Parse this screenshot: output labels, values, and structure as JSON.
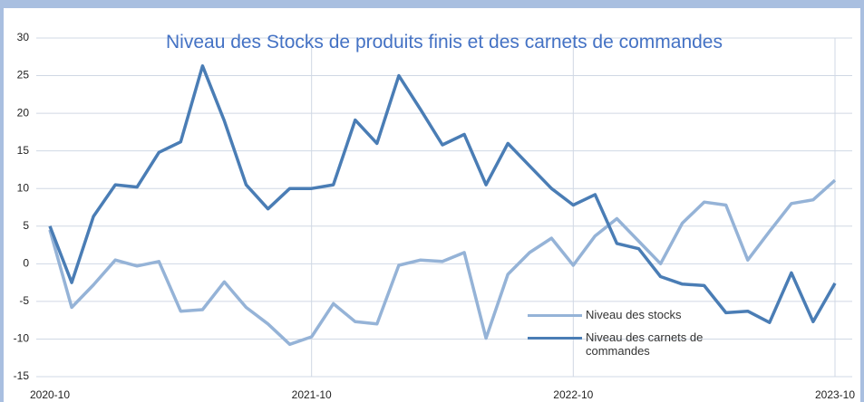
{
  "chart_data": {
    "type": "line",
    "title": "Niveau  des Stocks de produits finis et des carnets de commandes",
    "categories": [
      "2020-10",
      null,
      null,
      null,
      null,
      null,
      null,
      null,
      null,
      null,
      null,
      null,
      "2021-10",
      null,
      null,
      null,
      null,
      null,
      null,
      null,
      null,
      null,
      null,
      null,
      "2022-10",
      null,
      null,
      null,
      null,
      null,
      null,
      null,
      null,
      null,
      null,
      null,
      "2023-10"
    ],
    "series": [
      {
        "name": "Niveau des stocks",
        "color": "#95b3d7",
        "values": [
          4.5,
          -5.8,
          -2.8,
          0.5,
          -0.3,
          0.3,
          -6.3,
          -6.1,
          -2.4,
          -5.8,
          -8,
          -10.7,
          -9.7,
          -5.3,
          -7.7,
          -8,
          -0.2,
          0.5,
          0.3,
          1.5,
          -9.9,
          -1.4,
          1.5,
          3.4,
          -0.2,
          3.7,
          6,
          3,
          0,
          5.4,
          8.2,
          7.8,
          0.5,
          4.3,
          8,
          8.5,
          11.1
        ]
      },
      {
        "name": "Niveau des carnets de commandes",
        "color": "#4a7db5",
        "values": [
          5,
          -2.5,
          6.3,
          10.5,
          10.2,
          14.8,
          16.2,
          26.3,
          19,
          10.5,
          7.3,
          10,
          10,
          10.5,
          19.1,
          16,
          25,
          20.5,
          15.8,
          17.2,
          10.5,
          16,
          13,
          10,
          7.8,
          9.2,
          2.7,
          2,
          -1.7,
          -2.7,
          -2.9,
          -6.5,
          -6.3,
          -7.8,
          -1.2,
          -7.7,
          -2.6
        ]
      }
    ],
    "ylim": [
      -15,
      30
    ],
    "yticks": [
      -15,
      -10,
      -5,
      0,
      5,
      10,
      15,
      20,
      25,
      30
    ],
    "grid": true,
    "legend": "lower right"
  }
}
